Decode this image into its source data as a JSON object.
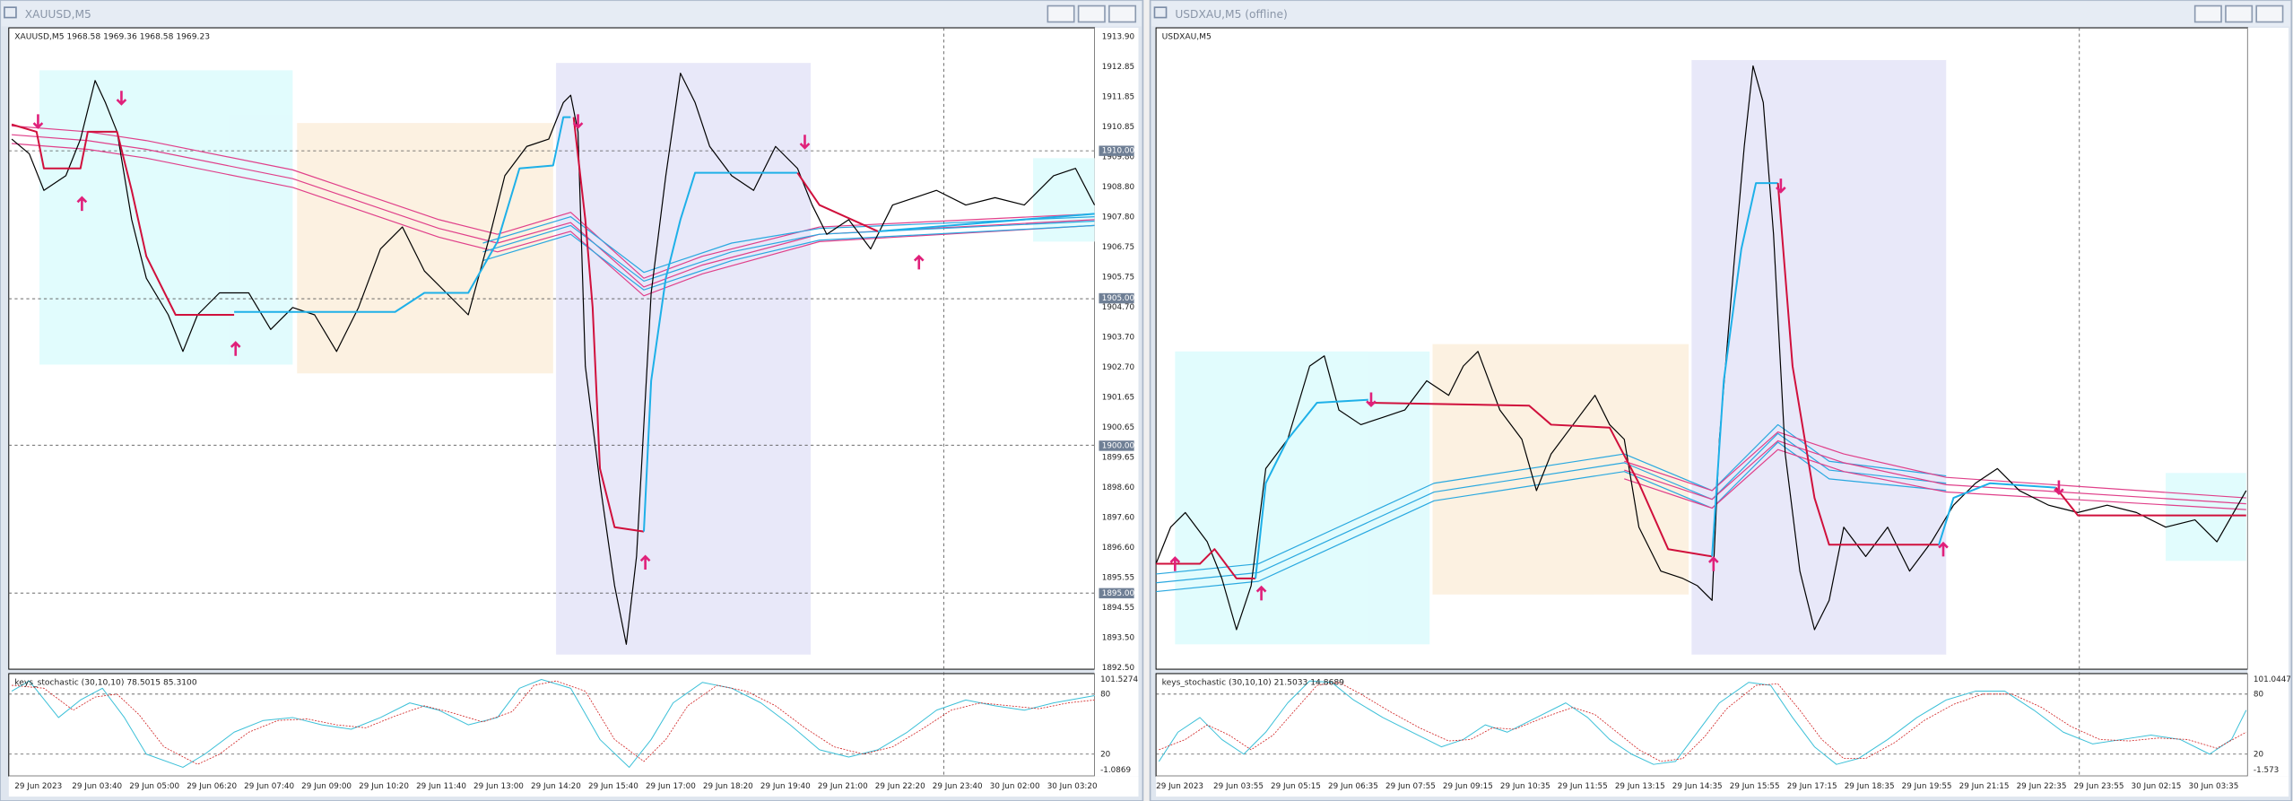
{
  "windows": [
    {
      "title": "XAUUSD,M5",
      "symbol_info": "XAUUSD,M5  1968.58 1969.36 1968.58 1969.23",
      "price_labels": [
        "1913.90",
        "1912.85",
        "1911.85",
        "1910.85",
        "1909.80",
        "1908.80",
        "1907.80",
        "1906.75",
        "1905.75",
        "1904.70",
        "1903.70",
        "1902.70",
        "1901.65",
        "1900.65",
        "1899.65",
        "1898.60",
        "1897.60",
        "1896.60",
        "1895.55",
        "1894.55",
        "1893.50",
        "1892.50"
      ],
      "price_markers": [
        "1910.00",
        "1905.00",
        "1900.00",
        "1895.00"
      ],
      "indicator_label": "keys_stochastic (30,10,10) 78.5015 85.3100",
      "indicator_axis": [
        "101.5274",
        "80",
        "20",
        "-1.0869"
      ],
      "time_labels": [
        "29 Jun 2023",
        "29 Jun 03:40",
        "29 Jun 05:00",
        "29 Jun 06:20",
        "29 Jun 07:40",
        "29 Jun 09:00",
        "29 Jun 10:20",
        "29 Jun 11:40",
        "29 Jun 13:00",
        "29 Jun 14:20",
        "29 Jun 15:40",
        "29 Jun 17:00",
        "29 Jun 18:20",
        "29 Jun 19:40",
        "29 Jun 21:00",
        "29 Jun 22:20",
        "29 Jun 23:40",
        "30 Jun 02:00",
        "30 Jun 03:20"
      ]
    },
    {
      "title": "USDXAU,M5 (offline)",
      "symbol_info": "USDXAU,M5",
      "indicator_label": "keys_stochastic (30,10,10) 21.5033 14.8689",
      "indicator_axis": [
        "101.0447",
        "80",
        "20",
        "-1.573"
      ],
      "time_labels": [
        "29 Jun 2023",
        "29 Jun 03:55",
        "29 Jun 05:15",
        "29 Jun 06:35",
        "29 Jun 07:55",
        "29 Jun 09:15",
        "29 Jun 10:35",
        "29 Jun 11:55",
        "29 Jun 13:15",
        "29 Jun 14:35",
        "29 Jun 15:55",
        "29 Jun 17:15",
        "29 Jun 18:35",
        "29 Jun 19:55",
        "29 Jun 21:15",
        "29 Jun 22:35",
        "29 Jun 23:55",
        "30 Jun 02:15",
        "30 Jun 03:35"
      ]
    }
  ]
}
